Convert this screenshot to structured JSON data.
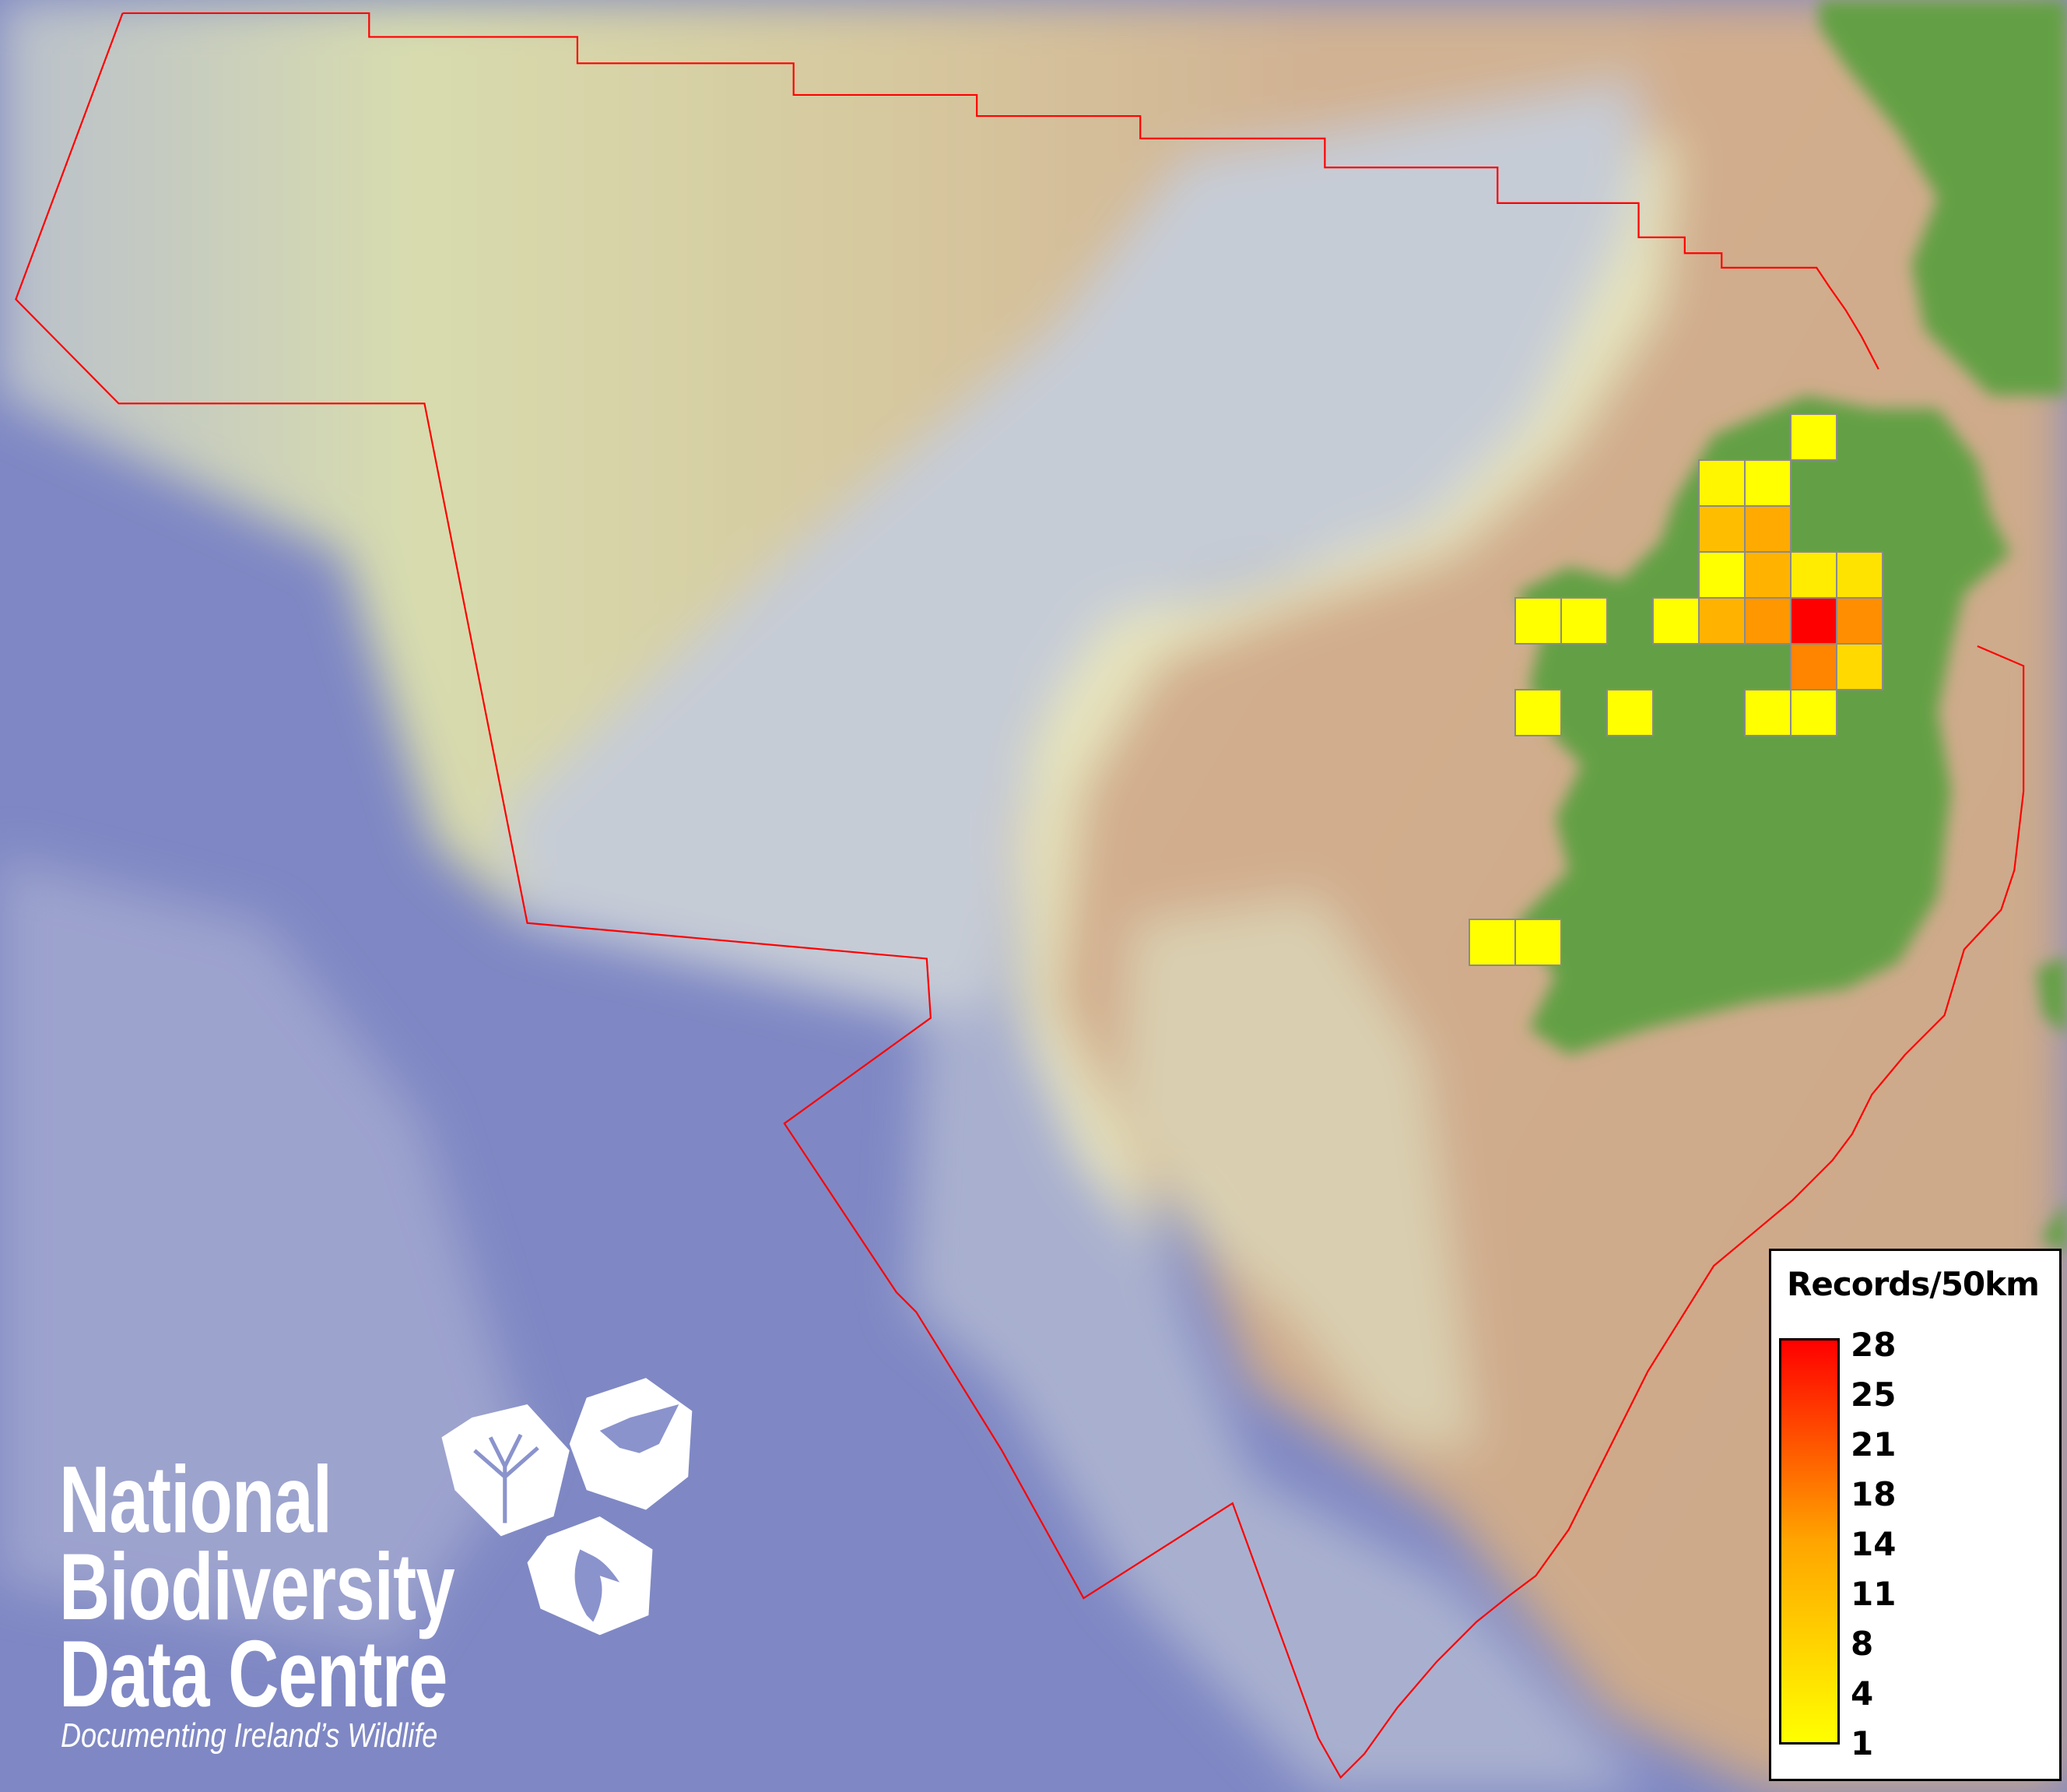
{
  "map": {
    "colors": {
      "deep_ocean": "#7f88c4",
      "trough": "#c3c9d6",
      "shelf_north": "#d9dbab",
      "shelf_tan": "#cfac8e",
      "land": "#63a045",
      "boundary": "#ff0000",
      "cell_border": "#8a8a8a"
    },
    "boundary_label": ""
  },
  "logo": {
    "lines": [
      "National",
      "Biodiversity",
      "Data Centre"
    ],
    "tagline": "Documenting Ireland’s Wildlife",
    "icons": [
      "tree-icon",
      "butterfly-icon",
      "seahorse-icon"
    ]
  },
  "legend": {
    "title": "Records/50km",
    "labels": [
      "28",
      "25",
      "21",
      "18",
      "14",
      "11",
      "8",
      "4",
      "1"
    ],
    "color_min": "#ffff00",
    "color_max": "#ff0000",
    "range": [
      1,
      28
    ]
  },
  "chart_data": {
    "type": "heatmap",
    "title": "",
    "legend_title": "Records/50km",
    "scale": {
      "min": 1,
      "max": 28,
      "colors": [
        "#ffff00",
        "#ffa500",
        "#ff0000"
      ]
    },
    "cell_values": [
      1,
      2,
      1,
      8,
      10,
      1,
      9,
      3,
      4,
      1,
      1,
      1,
      9,
      12,
      28,
      13,
      14,
      5,
      1,
      1,
      1,
      1,
      1,
      1
    ]
  }
}
